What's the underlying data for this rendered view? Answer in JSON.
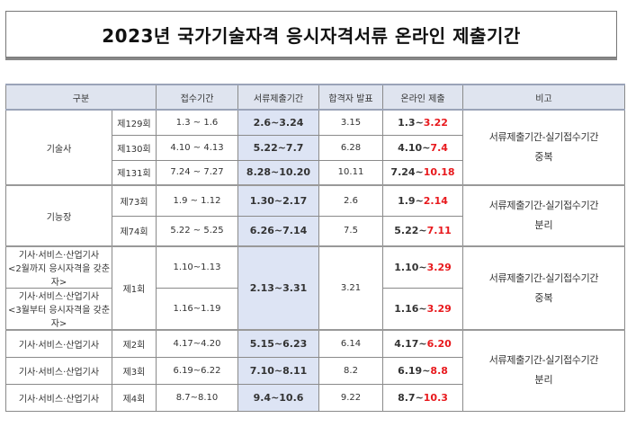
{
  "title": "2023년 국가기술자격 응시자격서류 온라인 제출기간",
  "headers": {
    "category": "구분",
    "reception": "접수기간",
    "docs": "서류제출기간",
    "results": "합격자 발표",
    "online": "온라인 제출",
    "notes": "비고"
  },
  "groups": {
    "gisulsa": {
      "label": "기술사",
      "rows": [
        {
          "round": "제129회",
          "reception": "1.3 ~ 1.6",
          "docs": "2.6~3.24",
          "results": "3.15",
          "online_start": "1.3~",
          "online_end": "3.22"
        },
        {
          "round": "제130회",
          "reception": "4.10 ~ 4.13",
          "docs": "5.22~7.7",
          "results": "6.28",
          "online_start": "4.10~",
          "online_end": "7.4"
        },
        {
          "round": "제131회",
          "reception": "7.24 ~ 7.27",
          "docs": "8.28~10.20",
          "results": "10.11",
          "online_start": "7.24~",
          "online_end": "10.18"
        }
      ],
      "note_line1": "서류제출기간-실기접수기간",
      "note_line2": "중복"
    },
    "gineungjang": {
      "label": "기능장",
      "rows": [
        {
          "round": "제73회",
          "reception": "1.9 ~ 1.12",
          "docs": "1.30~2.17",
          "results": "2.6",
          "online_start": "1.9~",
          "online_end": "2.14"
        },
        {
          "round": "제74회",
          "reception": "5.22 ~ 5.25",
          "docs": "6.26~7.14",
          "results": "7.5",
          "online_start": "5.22~",
          "online_end": "7.11"
        }
      ],
      "note_line1": "서류제출기간-실기접수기간",
      "note_line2": "분리"
    },
    "round1": {
      "round": "제1회",
      "row_a_label": "기사·서비스·산업기사",
      "row_a_sub": "<2월까지 응시자격을 갖춘자>",
      "row_a_reception": "1.10~1.13",
      "row_a_online_start": "1.10~",
      "row_a_online_end": "3.29",
      "row_b_label": "기사·서비스·산업기사",
      "row_b_sub": "<3월부터 응시자격을 갖춘자>",
      "row_b_reception": "1.16~1.19",
      "row_b_online_start": "1.16~",
      "row_b_online_end": "3.29",
      "docs": "2.13~3.31",
      "results": "3.21",
      "note_line1": "서류제출기간-실기접수기간",
      "note_line2": "중복"
    },
    "rounds234": {
      "rows": [
        {
          "label": "기사·서비스·산업기사",
          "round": "제2회",
          "reception": "4.17~4.20",
          "docs": "5.15~6.23",
          "results": "6.14",
          "online_start": "4.17~",
          "online_end": "6.20"
        },
        {
          "label": "기사·서비스·산업기사",
          "round": "제3회",
          "reception": "6.19~6.22",
          "docs": "7.10~8.11",
          "results": "8.2",
          "online_start": "6.19~",
          "online_end": "8.8"
        },
        {
          "label": "기사·서비스·산업기사",
          "round": "제4회",
          "reception": "8.7~8.10",
          "docs": "9.4~10.6",
          "results": "9.22",
          "online_start": "8.7~",
          "online_end": "10.3"
        }
      ],
      "note_line1": "서류제출기간-실기접수기간",
      "note_line2": "분리"
    }
  },
  "colors": {
    "header_bg": "#dfe4ef",
    "highlight_bg": "#dde4f4",
    "red_text": "#e8191d"
  }
}
